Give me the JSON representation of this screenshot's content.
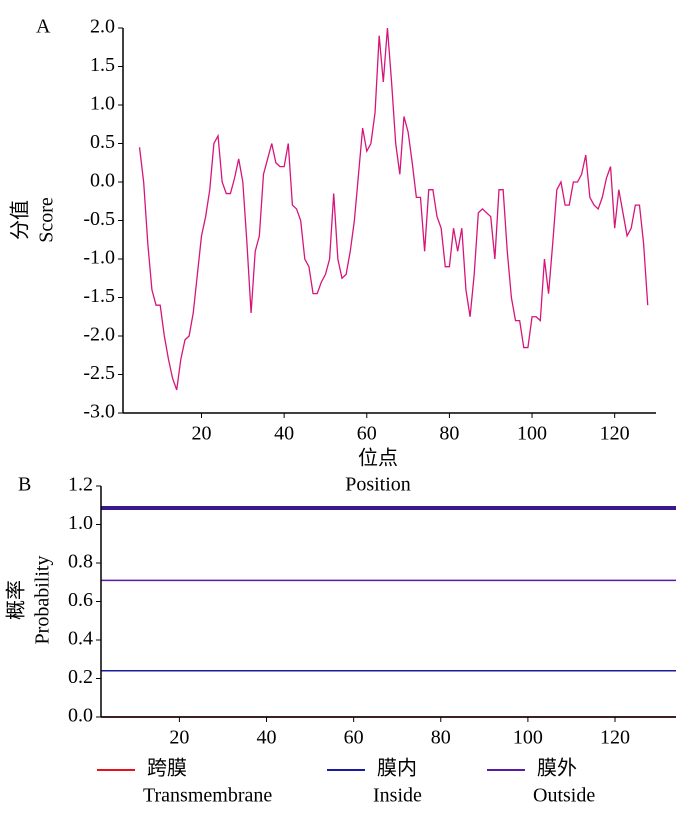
{
  "chart_data": [
    {
      "type": "line",
      "panel": "A",
      "y_label": "分值",
      "y_label_en": "Score",
      "x_label": "位点",
      "x_label_en": "Position",
      "xlim": [
        1,
        130
      ],
      "ylim": [
        -3,
        2
      ],
      "xticks": [
        20,
        40,
        60,
        80,
        100,
        120
      ],
      "yticks": [
        {
          "value": 2,
          "label": "2.0"
        },
        1.5,
        {
          "value": 1,
          "label": "1.0"
        },
        0.5,
        {
          "value": 0,
          "label": "0.0"
        },
        -0.5,
        {
          "value": -1,
          "label": "-1.0"
        },
        -1.5,
        {
          "value": -2,
          "label": "-2.0"
        },
        -2.5,
        {
          "value": -3,
          "label": "-3.0"
        }
      ],
      "series": [
        {
          "color": "#d6157a",
          "x": [
            5,
            6,
            7,
            8,
            9,
            10,
            11,
            12,
            13,
            14,
            15,
            16,
            17,
            18,
            19,
            20,
            21,
            22,
            23,
            24,
            25,
            26,
            27,
            28,
            29,
            30,
            31,
            32,
            33,
            34,
            35,
            36,
            37,
            38,
            39,
            40,
            41,
            42,
            43,
            44,
            45,
            46,
            47,
            48,
            49,
            50,
            51,
            52,
            53,
            54,
            55,
            56,
            57,
            58,
            59,
            60,
            61,
            62,
            63,
            64,
            65,
            66,
            67,
            68,
            69,
            70,
            71,
            72,
            73,
            74,
            75,
            76,
            77,
            78,
            79,
            80,
            81,
            82,
            83,
            84,
            85,
            86,
            87,
            88,
            89,
            90,
            91,
            92,
            93,
            94,
            95,
            96,
            97,
            98,
            99,
            100,
            101,
            102,
            103,
            104,
            105,
            106,
            107,
            108,
            109,
            110,
            111,
            112,
            113,
            114,
            115,
            116,
            117,
            118,
            119,
            120,
            121,
            122,
            123,
            124,
            125,
            126,
            127,
            128
          ],
          "values": [
            0.45,
            0,
            -0.8,
            -1.4,
            -1.6,
            -1.6,
            -2.0,
            -2.3,
            -2.55,
            -2.7,
            -2.3,
            -2.05,
            -2.0,
            -1.7,
            -1.2,
            -0.7,
            -0.45,
            -0.1,
            0.5,
            0.6,
            0,
            -0.15,
            -0.15,
            0.05,
            0.3,
            0,
            -0.8,
            -1.7,
            -0.9,
            -0.7,
            0.1,
            0.3,
            0.5,
            0.25,
            0.2,
            0.2,
            0.5,
            -0.3,
            -0.35,
            -0.5,
            -1.0,
            -1.1,
            -1.45,
            -1.45,
            -1.3,
            -1.2,
            -1.0,
            -0.15,
            -1.0,
            -1.25,
            -1.2,
            -0.9,
            -0.5,
            0.1,
            0.7,
            0.4,
            0.5,
            0.9,
            1.9,
            1.3,
            2.0,
            1.3,
            0.5,
            0.1,
            0.85,
            0.65,
            0.25,
            -0.2,
            -0.2,
            -0.9,
            -0.1,
            -0.1,
            -0.45,
            -0.6,
            -1.1,
            -1.1,
            -0.6,
            -0.9,
            -0.6,
            -1.4,
            -1.75,
            -1.2,
            -0.4,
            -0.35,
            -0.4,
            -0.45,
            -1.0,
            -0.1,
            -0.1,
            -0.9,
            -1.5,
            -1.8,
            -1.8,
            -2.15,
            -2.15,
            -1.75,
            -1.75,
            -1.8,
            -1.0,
            -1.45,
            -0.8,
            -0.1,
            0,
            -0.3,
            -0.3,
            0,
            0,
            0.1,
            0.35,
            -0.2,
            -0.3,
            -0.35,
            -0.2,
            0.05,
            0.2,
            -0.6,
            -0.1,
            -0.4,
            -0.7,
            -0.6,
            -0.3,
            -0.3,
            -0.8,
            -1.6
          ]
        }
      ]
    },
    {
      "type": "line",
      "panel": "B",
      "y_label": "概率",
      "y_label_en": "Probability",
      "xlim": [
        2,
        134
      ],
      "ylim": [
        0,
        1.2
      ],
      "xticks": [
        20,
        40,
        60,
        80,
        100,
        120
      ],
      "yticks": [
        1.2,
        {
          "value": 1,
          "label": "1.0"
        },
        0.8,
        0.6,
        0.4,
        0.2,
        {
          "value": 0,
          "label": "0.0"
        }
      ],
      "series": [
        {
          "name": "跨膜",
          "name_en": "Transmembrane",
          "color": "#e8101a",
          "x": [
            2,
            134
          ],
          "values": [
            0,
            0
          ]
        },
        {
          "name": "膜内",
          "name_en": "Inside",
          "color": "#1a1aa0",
          "x": [
            2,
            134
          ],
          "values": [
            0.24,
            0.24
          ]
        },
        {
          "name": "膜外",
          "name_en": "Outside",
          "color": "#5a1aa8",
          "x": [
            2,
            134
          ],
          "values": [
            0.71,
            0.71
          ]
        }
      ]
    }
  ]
}
